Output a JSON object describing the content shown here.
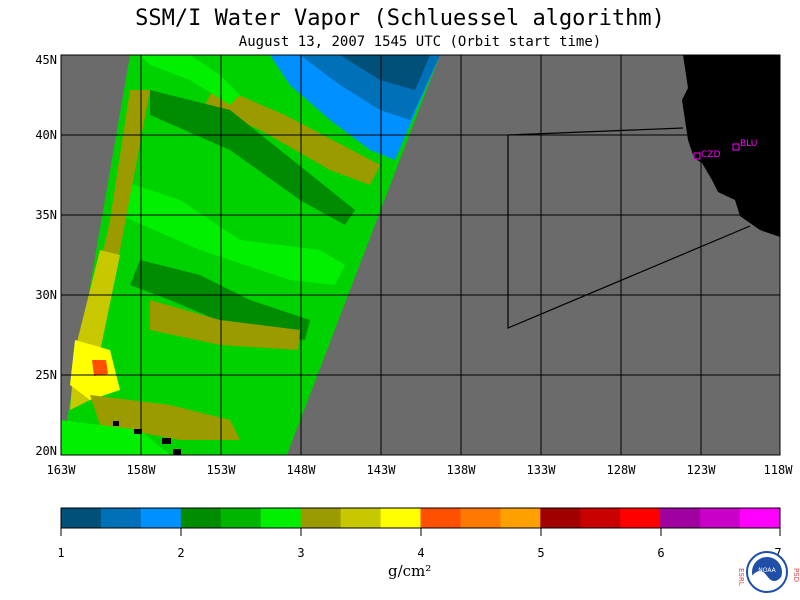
{
  "header": {
    "title": "SSM/I Water Vapor (Schluessel algorithm)",
    "subtitle": "August 13, 2007  1545 UTC  (Orbit start time)"
  },
  "map": {
    "lat_labels": [
      "45N",
      "40N",
      "35N",
      "30N",
      "25N",
      "20N"
    ],
    "lon_labels": [
      "163W",
      "158W",
      "153W",
      "148W",
      "143W",
      "138W",
      "133W",
      "128W",
      "123W",
      "118W"
    ],
    "stations": [
      {
        "id": "CZD",
        "label": "CZD"
      },
      {
        "id": "BLU",
        "label": "BLU"
      }
    ],
    "colors": {
      "no_data": "#6b6b6b",
      "land": "#000000",
      "station": "#ff00ff"
    }
  },
  "colorbar": {
    "colors": [
      "#00507a",
      "#0070b8",
      "#0090ff",
      "#008c00",
      "#00b400",
      "#00f000",
      "#9b9b00",
      "#c8c800",
      "#ffff00",
      "#ff5000",
      "#ff7800",
      "#ffa000",
      "#a00000",
      "#c80000",
      "#ff0000",
      "#a000a0",
      "#c800c8",
      "#ff00ff"
    ],
    "tick_labels": [
      "1",
      "2",
      "3",
      "4",
      "5",
      "6",
      "7"
    ],
    "units": "g/cm²"
  },
  "logo": {
    "left_text": "ESRL",
    "right_text": "PSD",
    "center_text": "NOAA"
  }
}
